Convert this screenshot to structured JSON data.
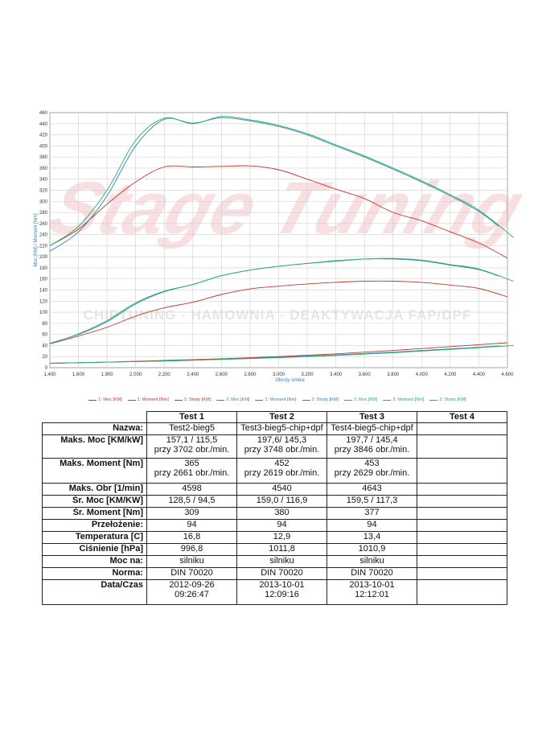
{
  "chart_data": {
    "type": "line",
    "xlabel": "Obroty silnika",
    "ylabel": "Moc [KM] / Moment [Nm]",
    "xlim": [
      1400,
      4600
    ],
    "ylim": [
      0,
      460
    ],
    "x_ticks": [
      1400,
      1600,
      1800,
      2000,
      2200,
      2400,
      2600,
      2800,
      3000,
      3200,
      3400,
      3600,
      3800,
      4000,
      4200,
      4400,
      4600
    ],
    "x_tick_labels": [
      "1.400",
      "1.600",
      "1.800",
      "2.000",
      "2.200",
      "2.400",
      "2.600",
      "2.800",
      "3.000",
      "3.200",
      "3.400",
      "3.600",
      "3.800",
      "4.000",
      "4.200",
      "4.400",
      "4.600"
    ],
    "y_ticks": [
      0,
      20,
      40,
      60,
      80,
      100,
      120,
      140,
      160,
      180,
      200,
      220,
      240,
      260,
      280,
      300,
      320,
      340,
      360,
      380,
      400,
      420,
      440,
      460
    ],
    "grid": true,
    "legend_position": "bottom",
    "watermark": {
      "logo": "Stage Tuning",
      "text": "CHIPTUNING - HAMOWNIA - DEAKTYWACJA FAP/DPF"
    },
    "series": [
      {
        "name": "1: Moc [KM]",
        "color": "#c0392b",
        "x": [
          1400,
          1600,
          1800,
          2000,
          2200,
          2400,
          2600,
          2800,
          3000,
          3200,
          3400,
          3600,
          3800,
          4000,
          4200,
          4400,
          4598
        ],
        "y": [
          43,
          57,
          73,
          93,
          108,
          118,
          132,
          142,
          147,
          151,
          154,
          156,
          156,
          154,
          149,
          143,
          128
        ]
      },
      {
        "name": "1: Moment [Nm]",
        "color": "#c0392b",
        "x": [
          1400,
          1600,
          1800,
          2000,
          2200,
          2400,
          2600,
          2800,
          3000,
          3200,
          3400,
          3600,
          3800,
          4000,
          4200,
          4400,
          4598
        ],
        "y": [
          220,
          250,
          295,
          335,
          362,
          362,
          363,
          364,
          357,
          340,
          322,
          305,
          280,
          265,
          245,
          225,
          198
        ]
      },
      {
        "name": "1: Straty [KM]",
        "color": "#c0392b",
        "x": [
          1400,
          1800,
          2200,
          2600,
          3000,
          3400,
          3800,
          4200,
          4598
        ],
        "y": [
          8,
          10,
          13,
          16,
          20,
          25,
          31,
          38,
          45
        ]
      },
      {
        "name": "2: Moc [KM]",
        "color": "#2e86c1",
        "x": [
          1400,
          1600,
          1800,
          2000,
          2200,
          2400,
          2600,
          2800,
          3000,
          3200,
          3400,
          3600,
          3800,
          4000,
          4200,
          4400,
          4540
        ],
        "y": [
          44,
          60,
          83,
          115,
          137,
          150,
          166,
          176,
          183,
          188,
          192,
          196,
          196,
          193,
          185,
          177,
          165
        ]
      },
      {
        "name": "2: Moment [Nm]",
        "color": "#2e86c1",
        "x": [
          1400,
          1600,
          1800,
          2000,
          2200,
          2400,
          2600,
          2800,
          3000,
          3200,
          3400,
          3600,
          3800,
          4000,
          4200,
          4400,
          4540
        ],
        "y": [
          210,
          245,
          310,
          400,
          448,
          441,
          451,
          445,
          435,
          420,
          400,
          380,
          358,
          335,
          310,
          282,
          255
        ]
      },
      {
        "name": "2: Straty [KM]",
        "color": "#2e86c1",
        "x": [
          1400,
          1800,
          2200,
          2600,
          3000,
          3400,
          3800,
          4200,
          4540
        ],
        "y": [
          8,
          10,
          12,
          15,
          19,
          23,
          28,
          34,
          39
        ]
      },
      {
        "name": "3: Moc [KM]",
        "color": "#27ae60",
        "x": [
          1400,
          1600,
          1800,
          2000,
          2200,
          2400,
          2600,
          2800,
          3000,
          3200,
          3400,
          3600,
          3800,
          4000,
          4200,
          4400,
          4643
        ],
        "y": [
          43,
          61,
          85,
          117,
          138,
          150,
          166,
          176,
          183,
          188,
          193,
          196,
          197,
          194,
          186,
          178,
          156
        ]
      },
      {
        "name": "3: Moment [Nm]",
        "color": "#27ae60",
        "x": [
          1400,
          1600,
          1800,
          2000,
          2200,
          2400,
          2600,
          2800,
          3000,
          3200,
          3400,
          3600,
          3800,
          4000,
          4200,
          4400,
          4643
        ],
        "y": [
          220,
          255,
          320,
          410,
          450,
          440,
          453,
          447,
          437,
          422,
          402,
          382,
          360,
          337,
          312,
          284,
          235
        ]
      },
      {
        "name": "3: Straty [KM]",
        "color": "#27ae60",
        "x": [
          1400,
          1800,
          2200,
          2600,
          3000,
          3400,
          3800,
          4200,
          4643
        ],
        "y": [
          8,
          10,
          12,
          15,
          18,
          22,
          27,
          33,
          40
        ]
      }
    ]
  },
  "table": {
    "headers": [
      "Test 1",
      "Test 2",
      "Test 3",
      "Test 4"
    ],
    "rows": [
      {
        "label": "Nazwa:",
        "values": [
          [
            "Test2-bieg5"
          ],
          [
            "Test3-bieg5-chip+dpf"
          ],
          [
            "Test4-bieg5-chip+dpf"
          ],
          [
            ""
          ]
        ]
      },
      {
        "label": "Maks. Moc [KM/kW]",
        "values": [
          [
            "157,1 / 115,5",
            "przy 3702 obr./min."
          ],
          [
            "197,6/ 145,3",
            "przy 3748 obr./min."
          ],
          [
            "197,7 / 145,4",
            "przy 3846 obr./min."
          ],
          [
            ""
          ]
        ]
      },
      {
        "label": "Maks. Moment [Nm]",
        "values": [
          [
            "365",
            "przy 2661 obr./min."
          ],
          [
            "452",
            "przy 2619 obr./min."
          ],
          [
            "453",
            "przy 2629 obr./min."
          ],
          [
            ""
          ]
        ]
      },
      {
        "label": "Maks. Obr [1/min]",
        "values": [
          [
            "4598"
          ],
          [
            "4540"
          ],
          [
            "4643"
          ],
          [
            ""
          ]
        ]
      },
      {
        "label": "Śr. Moc [KM/KW]",
        "values": [
          [
            "128,5 / 94,5"
          ],
          [
            "159,0 / 116,9"
          ],
          [
            "159,5 / 117,3"
          ],
          [
            ""
          ]
        ]
      },
      {
        "label": "Śr. Moment [Nm]",
        "values": [
          [
            "309"
          ],
          [
            "380"
          ],
          [
            "377"
          ],
          [
            ""
          ]
        ]
      },
      {
        "label": "Przełożenie:",
        "values": [
          [
            "94"
          ],
          [
            "94"
          ],
          [
            "94"
          ],
          [
            ""
          ]
        ]
      },
      {
        "label": "Temperatura [C]",
        "values": [
          [
            "16,8"
          ],
          [
            "12,9"
          ],
          [
            "13,4"
          ],
          [
            ""
          ]
        ]
      },
      {
        "label": "Ciśnienie [hPa]",
        "values": [
          [
            "996,8"
          ],
          [
            "1011,8"
          ],
          [
            "1010,9"
          ],
          [
            ""
          ]
        ]
      },
      {
        "label": "Moc na:",
        "values": [
          [
            "silniku"
          ],
          [
            "silniku"
          ],
          [
            "silniku"
          ],
          [
            ""
          ]
        ]
      },
      {
        "label": "Norma:",
        "values": [
          [
            "DIN 70020"
          ],
          [
            "DIN 70020"
          ],
          [
            "DIN 70020"
          ],
          [
            ""
          ]
        ]
      },
      {
        "label": "Data/Czas",
        "values": [
          [
            "2012-09-26",
            "09:26:47"
          ],
          [
            "2013-10-01",
            "12:09:16"
          ],
          [
            "2013-10-01",
            "12:12:01"
          ],
          [
            ""
          ]
        ]
      }
    ]
  }
}
